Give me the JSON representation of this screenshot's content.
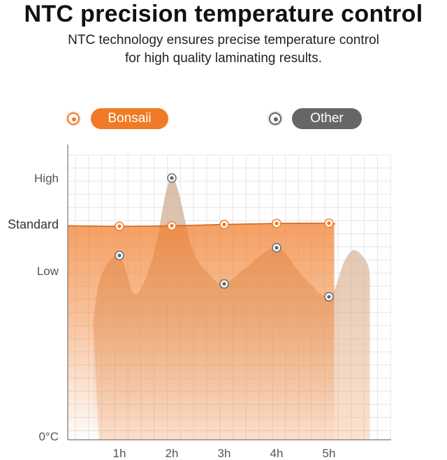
{
  "title": "NTC precision temperature control",
  "subtitle_lines": [
    "NTC technology ensures precise temperature control",
    "for high quality laminating results."
  ],
  "colors": {
    "bonsaii": "#f07a26",
    "other": "#666666",
    "other_fill": "#c9c9c9",
    "grid": "#e6e6e6",
    "axis": "#777777",
    "label": "#555555"
  },
  "chart_data": {
    "type": "area",
    "x_unit": "h",
    "xlim": [
      -0.97,
      5.1
    ],
    "ylim": [
      0,
      100
    ],
    "y_ticks": [
      {
        "label": "High",
        "value": 100
      },
      {
        "label": "Standard",
        "value": 82
      },
      {
        "label": "Low",
        "value": 64
      },
      {
        "label": "0°C",
        "value": 0
      }
    ],
    "x_ticks": [
      {
        "label": "1h",
        "value": 1
      },
      {
        "label": "2h",
        "value": 2
      },
      {
        "label": "3h",
        "value": 3
      },
      {
        "label": "4h",
        "value": 4
      },
      {
        "label": "5h",
        "value": 5
      }
    ],
    "series": [
      {
        "name": "Bonsaii",
        "curve": [
          [
            0.35,
            81.5
          ],
          [
            1,
            81.3
          ],
          [
            2,
            81.5
          ],
          [
            3,
            82
          ],
          [
            4,
            82.4
          ],
          [
            5,
            82.5
          ],
          [
            5.1,
            82
          ]
        ],
        "markers": [
          [
            1,
            81.3
          ],
          [
            2,
            81.5
          ],
          [
            3,
            82
          ],
          [
            4,
            82.4
          ],
          [
            5,
            82.5
          ]
        ]
      },
      {
        "name": "Other",
        "curve": [
          [
            0.5,
            45
          ],
          [
            0.65,
            62
          ],
          [
            1,
            70
          ],
          [
            1.3,
            55
          ],
          [
            1.65,
            70
          ],
          [
            2,
            100
          ],
          [
            2.4,
            72
          ],
          [
            2.75,
            62
          ],
          [
            3,
            59
          ],
          [
            3.4,
            65
          ],
          [
            4,
            73
          ],
          [
            4.5,
            62
          ],
          [
            5,
            54
          ],
          [
            5.3,
            68
          ],
          [
            5.5,
            72
          ],
          [
            5.75,
            66
          ],
          [
            5.78,
            55
          ]
        ],
        "markers": [
          [
            1,
            70
          ],
          [
            2,
            100
          ],
          [
            3,
            59
          ],
          [
            4,
            73
          ],
          [
            5,
            54
          ]
        ]
      }
    ]
  }
}
